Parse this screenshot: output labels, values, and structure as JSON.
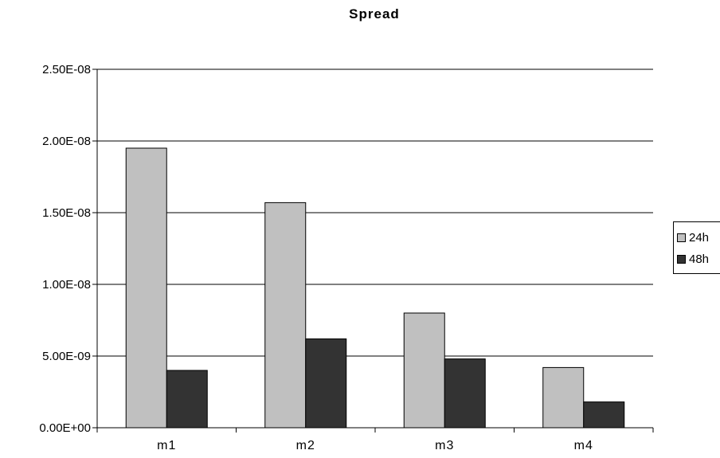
{
  "chart_data": {
    "type": "bar",
    "title": "Spread",
    "xlabel": "",
    "ylabel": "",
    "categories": [
      "m1",
      "m2",
      "m3",
      "m4"
    ],
    "series": [
      {
        "name": "24h",
        "color": "#c0c0c0",
        "values": [
          1.95e-08,
          1.57e-08,
          8e-09,
          4.2e-09
        ]
      },
      {
        "name": "48h",
        "color": "#333333",
        "values": [
          4e-09,
          6.2e-09,
          4.8e-09,
          1.8e-09
        ]
      }
    ],
    "ylim": [
      0,
      2.5e-08
    ],
    "yticks": [
      {
        "value": 0,
        "label": "0.00E+00"
      },
      {
        "value": 5e-09,
        "label": "5.00E-09"
      },
      {
        "value": 1e-08,
        "label": "1.00E-08"
      },
      {
        "value": 1.5e-08,
        "label": "1.50E-08"
      },
      {
        "value": 2e-08,
        "label": "2.00E-08"
      },
      {
        "value": 2.5e-08,
        "label": "2.50E-08"
      }
    ],
    "grid": true,
    "legend_position": "right"
  }
}
